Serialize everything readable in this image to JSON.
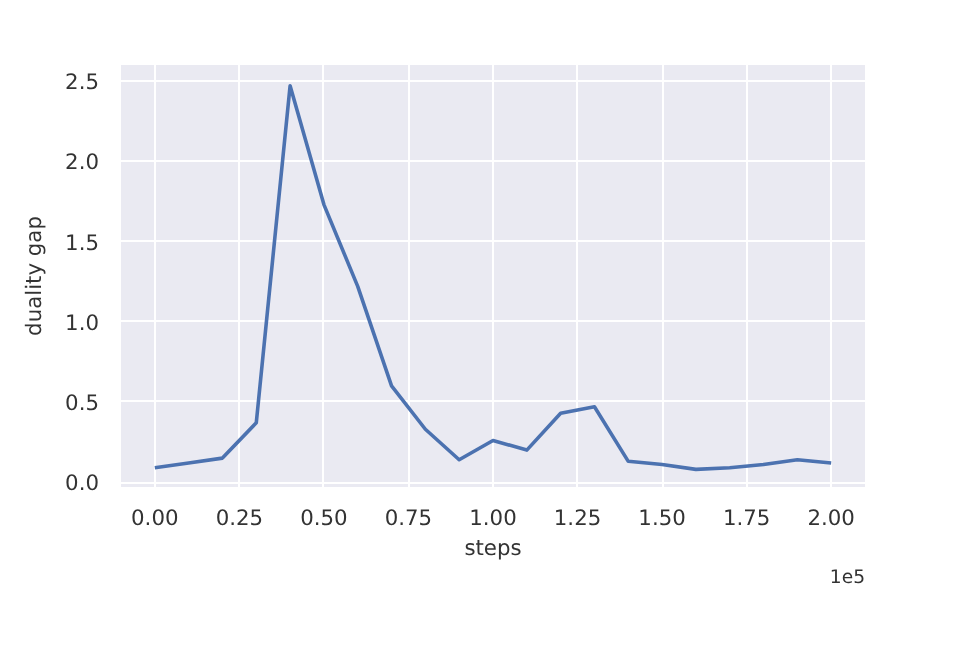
{
  "chart_data": {
    "type": "line",
    "xlabel": "steps",
    "ylabel": "duality gap",
    "annotations": [
      "1e5"
    ],
    "x": [
      0,
      0.1,
      0.2,
      0.3,
      0.4,
      0.5,
      0.6,
      0.7,
      0.8,
      0.9,
      1.0,
      1.1,
      1.2,
      1.3,
      1.4,
      1.5,
      1.6,
      1.7,
      1.8,
      1.9,
      2.0
    ],
    "series": [
      {
        "color": "#4c72b0",
        "values": [
          0.09,
          0.12,
          0.15,
          0.37,
          2.47,
          1.73,
          1.22,
          0.6,
          0.33,
          0.14,
          0.26,
          0.2,
          0.43,
          0.47,
          0.13,
          0.11,
          0.08,
          0.09,
          0.11,
          0.14,
          0.12
        ]
      }
    ],
    "xlim": [
      -0.1,
      2.1
    ],
    "ylim": [
      -0.03,
      2.6
    ],
    "xticks": [
      {
        "value": 0,
        "label": "0.00"
      },
      {
        "value": 0.25,
        "label": "0.25"
      },
      {
        "value": 0.5,
        "label": "0.50"
      },
      {
        "value": 0.75,
        "label": "0.75"
      },
      {
        "value": 1.0,
        "label": "1.00"
      },
      {
        "value": 1.25,
        "label": "1.25"
      },
      {
        "value": 1.5,
        "label": "1.50"
      },
      {
        "value": 1.75,
        "label": "1.75"
      },
      {
        "value": 2.0,
        "label": "2.00"
      }
    ],
    "yticks": [
      {
        "value": 0,
        "label": "0.0"
      },
      {
        "value": 0.5,
        "label": "0.5"
      },
      {
        "value": 1.0,
        "label": "1.0"
      },
      {
        "value": 1.5,
        "label": "1.5"
      },
      {
        "value": 2.0,
        "label": "2.0"
      },
      {
        "value": 2.5,
        "label": "2.5"
      }
    ],
    "grid": true,
    "line_style": "solid"
  }
}
